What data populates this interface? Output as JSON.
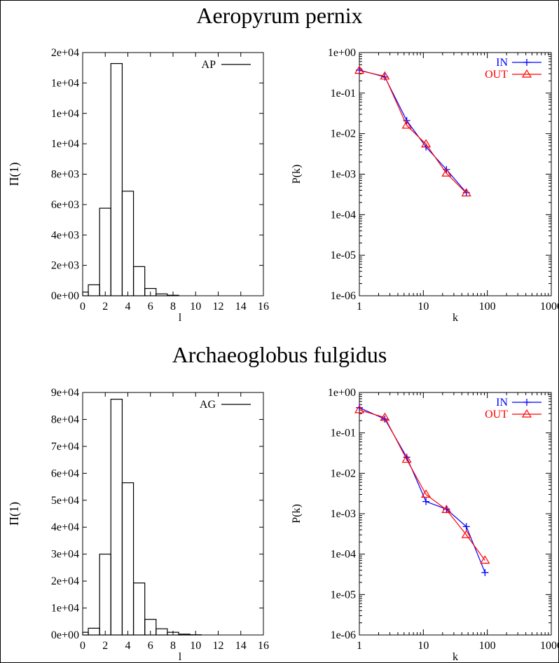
{
  "sections": [
    {
      "title": "Aeropyrum pernix",
      "histogram": {
        "ylabel": "Π(1)",
        "xlabel": "l",
        "legend": "AP",
        "yticks": [
          "0e+00",
          "2e+03",
          "4e+03",
          "6e+03",
          "8e+03",
          "1e+04",
          "1e+04",
          "1e+04",
          "2e+04"
        ],
        "xticks": [
          "0",
          "2",
          "4",
          "6",
          "8",
          "10",
          "12",
          "14",
          "16"
        ]
      },
      "degree": {
        "ylabel": "P(k)",
        "xlabel": "k",
        "yticks": [
          "1e-06",
          "1e-05",
          "1e-04",
          "1e-03",
          "1e-02",
          "1e-01",
          "1e+00"
        ],
        "xticks": [
          "1",
          "10",
          "100",
          "1000"
        ],
        "legend": [
          "IN",
          "OUT"
        ]
      }
    },
    {
      "title": "Archaeoglobus fulgidus",
      "histogram": {
        "ylabel": "Π(1)",
        "xlabel": "l",
        "legend": "AG",
        "yticks": [
          "0e+00",
          "1e+04",
          "2e+04",
          "3e+04",
          "4e+04",
          "5e+04",
          "6e+04",
          "7e+04",
          "8e+04",
          "9e+04"
        ],
        "xticks": [
          "0",
          "2",
          "4",
          "6",
          "8",
          "10",
          "12",
          "14",
          "16"
        ]
      },
      "degree": {
        "ylabel": "P(k)",
        "xlabel": "k",
        "yticks": [
          "1e-06",
          "1e-05",
          "1e-04",
          "1e-03",
          "1e-02",
          "1e-01",
          "1e+00"
        ],
        "xticks": [
          "1",
          "10",
          "100",
          "1000"
        ],
        "legend": [
          "IN",
          "OUT"
        ]
      }
    }
  ],
  "colors": {
    "in": "#0000ff",
    "out": "#ff0000",
    "axis": "#000000"
  },
  "chart_data": [
    {
      "type": "histogram",
      "legend": "AP",
      "xlabel": "l",
      "ylabel": "Π(1)",
      "xlim": [
        0,
        16
      ],
      "ylim": [
        0,
        20000
      ],
      "bin_width": 1,
      "bins": [
        {
          "x0": 0,
          "x1": 0.5,
          "y": 300
        },
        {
          "x0": 0.5,
          "x1": 1.5,
          "y": 900
        },
        {
          "x0": 1.5,
          "x1": 2.5,
          "y": 7200
        },
        {
          "x0": 2.5,
          "x1": 3.5,
          "y": 19100
        },
        {
          "x0": 3.5,
          "x1": 4.5,
          "y": 8600
        },
        {
          "x0": 4.5,
          "x1": 5.5,
          "y": 2400
        },
        {
          "x0": 5.5,
          "x1": 6.5,
          "y": 600
        },
        {
          "x0": 6.5,
          "x1": 7.5,
          "y": 150
        },
        {
          "x0": 7.5,
          "x1": 8.5,
          "y": 40
        }
      ]
    },
    {
      "type": "line",
      "log_x": true,
      "log_y": true,
      "xlabel": "k",
      "ylabel": "P(k)",
      "xlim": [
        1,
        1000
      ],
      "ylim": [
        1e-06,
        1
      ],
      "legend_position": "top-right",
      "series": [
        {
          "name": "IN",
          "marker": "plus",
          "x": [
            1,
            2.5,
            5.5,
            11,
            23,
            47
          ],
          "y": [
            0.37,
            0.25,
            0.021,
            0.0047,
            0.0013,
            0.00035
          ]
        },
        {
          "name": "OUT",
          "marker": "triangle",
          "x": [
            1,
            2.5,
            5.5,
            11,
            23,
            47
          ],
          "y": [
            0.36,
            0.26,
            0.016,
            0.0055,
            0.00105,
            0.00034
          ]
        }
      ]
    },
    {
      "type": "histogram",
      "legend": "AG",
      "xlabel": "l",
      "ylabel": "Π(1)",
      "xlim": [
        0,
        16
      ],
      "ylim": [
        0,
        90000
      ],
      "bin_width": 1,
      "bins": [
        {
          "x0": 0,
          "x1": 0.5,
          "y": 1000
        },
        {
          "x0": 0.5,
          "x1": 1.5,
          "y": 2500
        },
        {
          "x0": 1.5,
          "x1": 2.5,
          "y": 30000
        },
        {
          "x0": 2.5,
          "x1": 3.5,
          "y": 87500
        },
        {
          "x0": 3.5,
          "x1": 4.5,
          "y": 56500
        },
        {
          "x0": 4.5,
          "x1": 5.5,
          "y": 19300
        },
        {
          "x0": 5.5,
          "x1": 6.5,
          "y": 5800
        },
        {
          "x0": 6.5,
          "x1": 7.5,
          "y": 2300
        },
        {
          "x0": 7.5,
          "x1": 8.5,
          "y": 1000
        },
        {
          "x0": 8.5,
          "x1": 9.5,
          "y": 300
        },
        {
          "x0": 9.5,
          "x1": 10.5,
          "y": 80
        }
      ]
    },
    {
      "type": "line",
      "log_x": true,
      "log_y": true,
      "xlabel": "k",
      "ylabel": "P(k)",
      "xlim": [
        1,
        1000
      ],
      "ylim": [
        1e-06,
        1
      ],
      "legend_position": "top-right",
      "series": [
        {
          "name": "IN",
          "marker": "plus",
          "x": [
            1,
            2.5,
            5.5,
            11,
            23,
            47,
            92
          ],
          "y": [
            0.42,
            0.22,
            0.025,
            0.002,
            0.0013,
            0.00048,
            3.5e-05
          ]
        },
        {
          "name": "OUT",
          "marker": "triangle",
          "x": [
            1,
            2.5,
            5.5,
            11,
            23,
            47,
            92
          ],
          "y": [
            0.37,
            0.24,
            0.022,
            0.003,
            0.00125,
            0.0003,
            7e-05
          ]
        }
      ]
    }
  ]
}
